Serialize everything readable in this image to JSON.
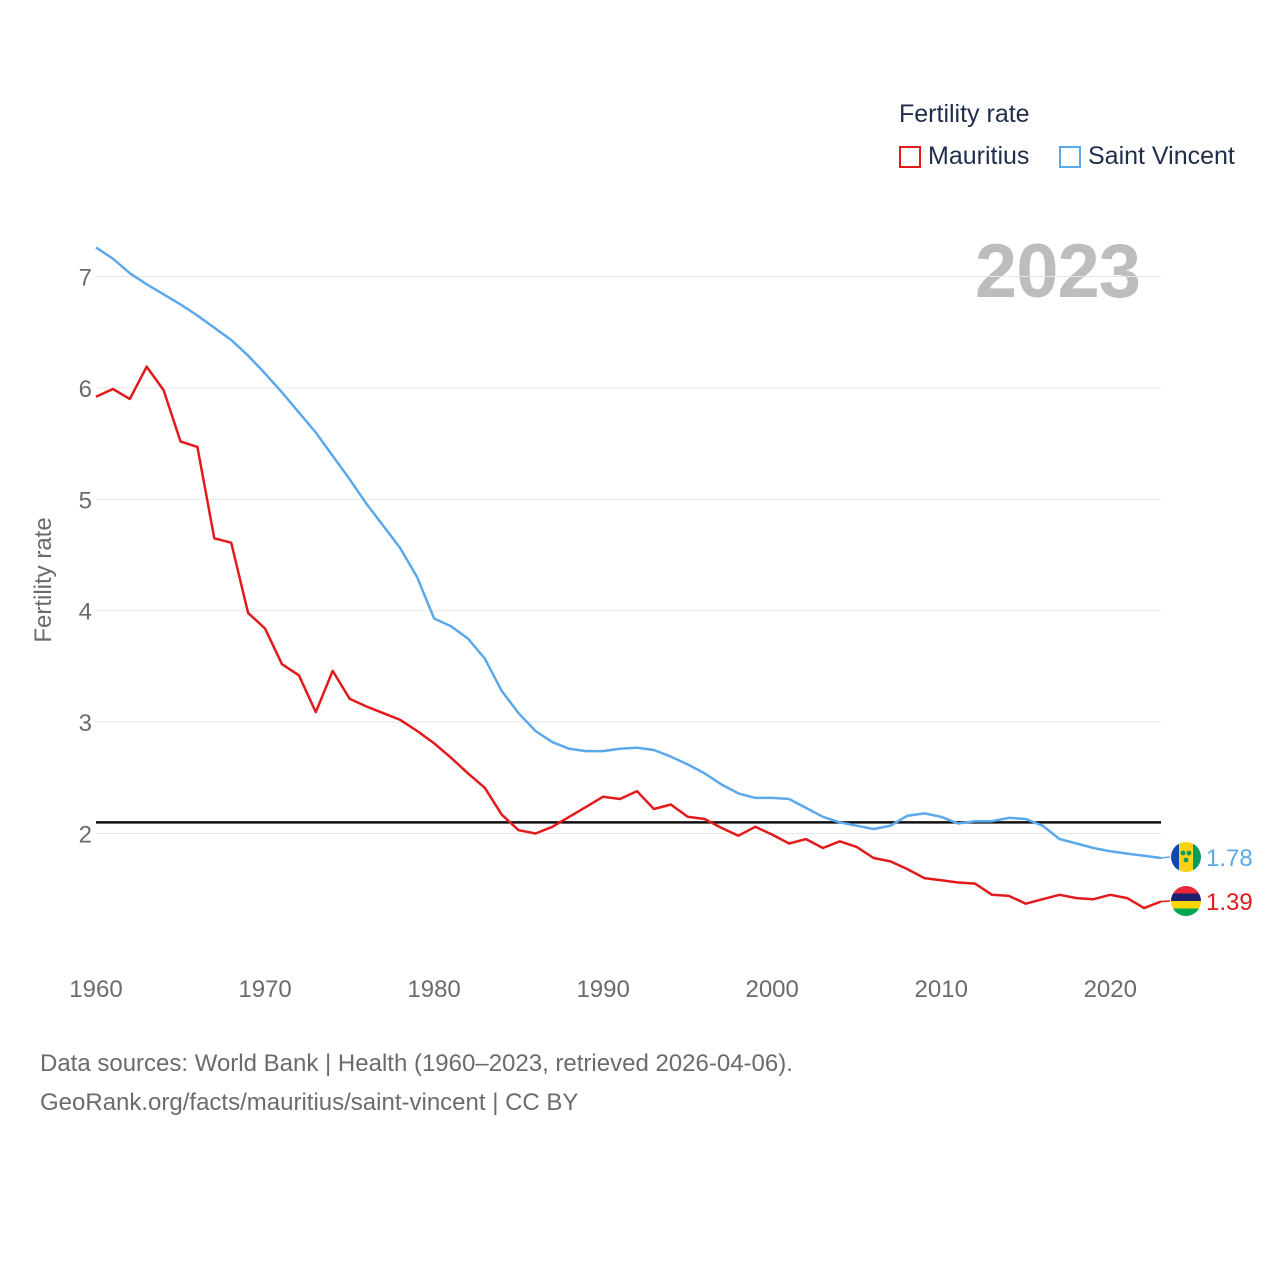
{
  "legend": {
    "title": "Fertility rate",
    "items": [
      {
        "label": "Mauritius",
        "color": "#e31a1c"
      },
      {
        "label": "Saint Vincent",
        "color": "#5ba8ea"
      }
    ]
  },
  "year_label": "2023",
  "source": {
    "line1": "Data sources: World Bank | Health (1960–2023, retrieved 2026-04-06).",
    "line2": "GeoRank.org/facts/mauritius/saint-vincent | CC BY"
  },
  "chart_data": {
    "type": "line",
    "title": "Fertility rate",
    "xlabel": "",
    "ylabel": "Fertility rate",
    "xlim": [
      1960,
      2023
    ],
    "ylim": [
      1,
      7.4
    ],
    "xticks": [
      1960,
      1970,
      1980,
      1990,
      2000,
      2010,
      2020
    ],
    "yticks": [
      2,
      3,
      4,
      5,
      6,
      7
    ],
    "grid": true,
    "reference_line": {
      "value": 2.1
    },
    "x": [
      1960,
      1961,
      1962,
      1963,
      1964,
      1965,
      1966,
      1967,
      1968,
      1969,
      1970,
      1971,
      1972,
      1973,
      1974,
      1975,
      1976,
      1977,
      1978,
      1979,
      1980,
      1981,
      1982,
      1983,
      1984,
      1985,
      1986,
      1987,
      1988,
      1989,
      1990,
      1991,
      1992,
      1993,
      1994,
      1995,
      1996,
      1997,
      1998,
      1999,
      2000,
      2001,
      2002,
      2003,
      2004,
      2005,
      2006,
      2007,
      2008,
      2009,
      2010,
      2011,
      2012,
      2013,
      2014,
      2015,
      2016,
      2017,
      2018,
      2019,
      2020,
      2021,
      2022,
      2023
    ],
    "series": [
      {
        "name": "Mauritius",
        "color": "#e31a1c",
        "end_label": "1.39",
        "values": [
          5.92,
          5.99,
          5.9,
          6.19,
          5.98,
          5.52,
          5.47,
          4.65,
          4.61,
          3.98,
          3.84,
          3.52,
          3.42,
          3.09,
          3.46,
          3.21,
          3.14,
          3.08,
          3.02,
          2.92,
          2.81,
          2.68,
          2.54,
          2.41,
          2.17,
          2.03,
          2.0,
          2.06,
          2.15,
          2.24,
          2.33,
          2.31,
          2.38,
          2.22,
          2.26,
          2.15,
          2.13,
          2.05,
          1.98,
          2.06,
          1.99,
          1.91,
          1.95,
          1.87,
          1.93,
          1.88,
          1.78,
          1.75,
          1.68,
          1.6,
          1.58,
          1.56,
          1.55,
          1.45,
          1.44,
          1.37,
          1.41,
          1.45,
          1.42,
          1.41,
          1.45,
          1.42,
          1.33,
          1.39
        ]
      },
      {
        "name": "Saint Vincent",
        "color": "#5ba8ea",
        "end_label": "1.78",
        "values": [
          7.26,
          7.16,
          7.03,
          6.93,
          6.84,
          6.75,
          6.65,
          6.54,
          6.43,
          6.29,
          6.13,
          5.96,
          5.78,
          5.6,
          5.39,
          5.18,
          4.96,
          4.76,
          4.56,
          4.3,
          3.93,
          3.86,
          3.75,
          3.57,
          3.28,
          3.08,
          2.92,
          2.82,
          2.76,
          2.74,
          2.74,
          2.76,
          2.77,
          2.75,
          2.69,
          2.62,
          2.54,
          2.44,
          2.36,
          2.32,
          2.32,
          2.31,
          2.23,
          2.15,
          2.1,
          2.07,
          2.04,
          2.07,
          2.16,
          2.18,
          2.15,
          2.09,
          2.11,
          2.11,
          2.14,
          2.13,
          2.07,
          1.95,
          1.91,
          1.87,
          1.84,
          1.82,
          1.8,
          1.78
        ]
      }
    ]
  }
}
